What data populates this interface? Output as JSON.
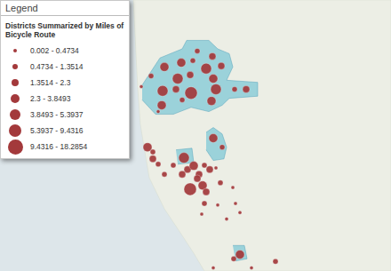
{
  "chart_data": {
    "type": "map",
    "legend_header": "Legend",
    "legend_title": "Districts Summarized by Miles of Bicycle Route",
    "legend": "top left",
    "classes": [
      "0.002 - 0.4734",
      "0.4734 - 1.3514",
      "1.3514 - 2.3",
      "2.3 - 3.8493",
      "3.8493 - 5.3937",
      "5.3937 - 9.4316",
      "9.4316 - 18.2854"
    ],
    "color": "#a3393b",
    "xlim": [
      -117.59,
      -116.71
    ],
    "ylim": [
      32.56,
      33.07
    ],
    "tick_labels": false,
    "districts": [
      {
        "lon": [
          -117.27,
          -117.25,
          -117.23,
          -117.18,
          -117.17,
          -117.12,
          -117.1,
          -117.074,
          -117.066,
          -117.08,
          -117.01,
          -117.01,
          -117.074,
          -117.09,
          -117.12,
          -117.16,
          -117.2,
          -117.24,
          -117.27
        ],
        "lat": [
          32.91,
          32.936,
          32.961,
          32.978,
          32.994,
          32.994,
          32.978,
          32.969,
          32.944,
          32.919,
          32.915,
          32.889,
          32.885,
          32.872,
          32.86,
          32.868,
          32.855,
          32.855,
          32.882
        ]
      },
      {
        "lon": [
          -117.126,
          -117.11,
          -117.09,
          -117.08,
          -117.086,
          -117.11,
          -117.126
        ],
        "lat": [
          32.821,
          32.83,
          32.818,
          32.793,
          32.771,
          32.768,
          32.788
        ]
      },
      {
        "lon": [
          -117.194,
          -117.158,
          -117.154,
          -117.19
        ],
        "lat": [
          32.788,
          32.791,
          32.764,
          32.761
        ]
      },
      {
        "lon": [
          -117.066,
          -117.04,
          -117.034,
          -117.06
        ],
        "lat": [
          32.608,
          32.608,
          32.583,
          32.579
        ]
      }
    ],
    "points": {
      "lon": [
        -117.146,
        -117.112,
        -117.182,
        -117.156,
        -117.22,
        -117.126,
        -117.092,
        -117.19,
        -117.162,
        -117.11,
        -117.25,
        -117.224,
        -117.194,
        -117.16,
        -117.104,
        -117.062,
        -117.036,
        -117.114,
        -117.226,
        -117.234,
        -117.272,
        -117.18,
        -117.258,
        -117.246,
        -117.246,
        -117.234,
        -117.176,
        -117.2,
        -117.168,
        -117.18,
        -117.154,
        -117.142,
        -117.13,
        -117.118,
        -117.104,
        -117.11,
        -117.09,
        -117.134,
        -117.146,
        -117.126,
        -117.162,
        -117.22,
        -117.094,
        -117.066,
        -117.06,
        -117.05,
        -117.13,
        -117.1,
        -117.08,
        -117.136,
        -117.05,
        -117.064,
        -117.11,
        -116.97,
        -117.024
      ],
      "lat": [
        32.974,
        32.964,
        32.952,
        32.956,
        32.944,
        32.941,
        32.946,
        32.922,
        32.929,
        32.922,
        32.927,
        32.899,
        32.902,
        32.895,
        32.902,
        32.902,
        32.902,
        32.88,
        32.872,
        32.86,
        32.907,
        32.882,
        32.793,
        32.784,
        32.771,
        32.761,
        32.773,
        32.759,
        32.751,
        32.742,
        32.758,
        32.742,
        32.759,
        32.751,
        32.754,
        32.81,
        32.793,
        32.721,
        32.734,
        32.709,
        32.714,
        32.742,
        32.726,
        32.717,
        32.687,
        32.67,
        32.687,
        32.684,
        32.658,
        32.667,
        32.591,
        32.583,
        32.566,
        32.578,
        32.566
      ],
      "class": [
        1,
        2,
        3,
        1,
        3,
        4,
        2,
        4,
        2,
        3,
        1,
        4,
        2,
        5,
        4,
        1,
        2,
        3,
        3,
        0,
        0,
        1,
        3,
        1,
        2,
        1,
        4,
        1,
        2,
        2,
        3,
        2,
        1,
        2,
        0,
        3,
        1,
        3,
        2,
        2,
        5,
        1,
        1,
        0,
        0,
        0,
        1,
        0,
        0,
        0,
        3,
        1,
        0,
        1,
        0
      ]
    }
  }
}
